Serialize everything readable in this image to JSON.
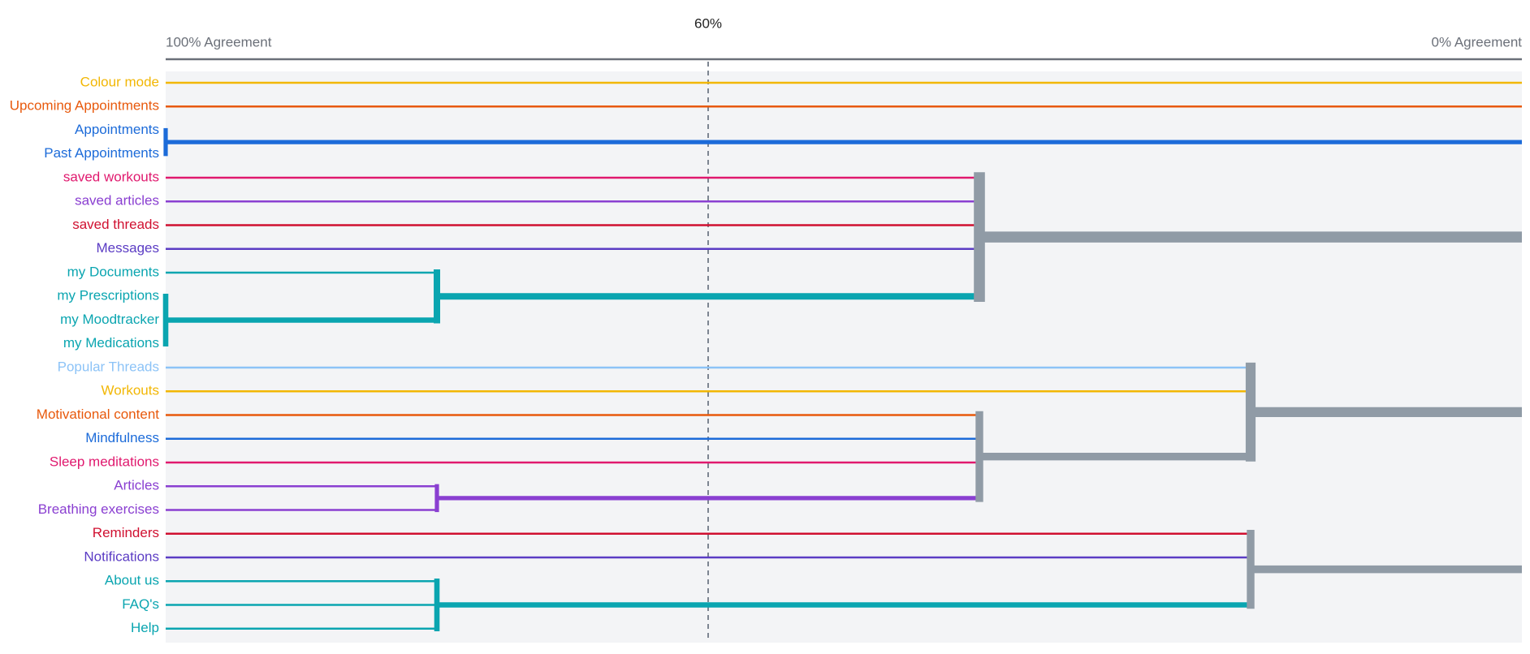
{
  "chart_data": {
    "type": "dendrogram",
    "xlim": [
      100,
      0
    ],
    "xticks": [
      {
        "value": 100,
        "label": "100% Agreement"
      },
      {
        "value": 0,
        "label": "0% Agreement"
      }
    ],
    "threshold": {
      "value": 60,
      "label": "60%"
    },
    "tree": [
      {
        "label": "Colour mode",
        "color": "#f2b705"
      },
      {
        "label": "Upcoming Appointments",
        "color": "#e8590c"
      },
      {
        "agreement": 100,
        "color": "#1c6bd9",
        "children": [
          {
            "label": "Appointments",
            "color": "#1c6bd9"
          },
          {
            "label": "Past Appointments",
            "color": "#1c6bd9"
          }
        ]
      },
      {
        "agreement": 40,
        "color": "#909ba6",
        "children": [
          {
            "label": "saved workouts",
            "color": "#e0196e"
          },
          {
            "label": "saved articles",
            "color": "#8a3fd1"
          },
          {
            "label": "saved threads",
            "color": "#d01030"
          },
          {
            "label": "Messages",
            "color": "#5b3cc4"
          },
          {
            "agreement": 80,
            "color": "#0aa5b0",
            "children": [
              {
                "label": "my Documents",
                "color": "#0aa5b0"
              },
              {
                "agreement": 100,
                "color": "#0aa5b0",
                "children": [
                  {
                    "label": "my Prescriptions",
                    "color": "#0aa5b0"
                  },
                  {
                    "label": "my Moodtracker",
                    "color": "#0aa5b0"
                  },
                  {
                    "label": "my Medications",
                    "color": "#0aa5b0"
                  }
                ]
              }
            ]
          }
        ]
      },
      {
        "agreement": 20,
        "color": "#909ba6",
        "children": [
          {
            "label": "Popular Threads",
            "color": "#8cc3f7"
          },
          {
            "label": "Workouts",
            "color": "#f2b705"
          },
          {
            "agreement": 40,
            "color": "#909ba6",
            "children": [
              {
                "label": "Motivational content",
                "color": "#e8590c"
              },
              {
                "label": "Mindfulness",
                "color": "#1c6bd9"
              },
              {
                "label": "Sleep meditations",
                "color": "#e0196e"
              },
              {
                "agreement": 80,
                "color": "#8a3fd1",
                "children": [
                  {
                    "label": "Articles",
                    "color": "#8a3fd1"
                  },
                  {
                    "label": "Breathing exercises",
                    "color": "#8a3fd1"
                  }
                ]
              }
            ]
          }
        ]
      },
      {
        "agreement": 20,
        "color": "#909ba6",
        "children": [
          {
            "label": "Reminders",
            "color": "#d01030"
          },
          {
            "label": "Notifications",
            "color": "#5b3cc4"
          },
          {
            "agreement": 80,
            "color": "#0aa5b0",
            "children": [
              {
                "label": "About us",
                "color": "#0aa5b0"
              },
              {
                "label": "FAQ's",
                "color": "#0aa5b0"
              },
              {
                "label": "Help",
                "color": "#0aa5b0"
              }
            ]
          }
        ]
      }
    ]
  }
}
